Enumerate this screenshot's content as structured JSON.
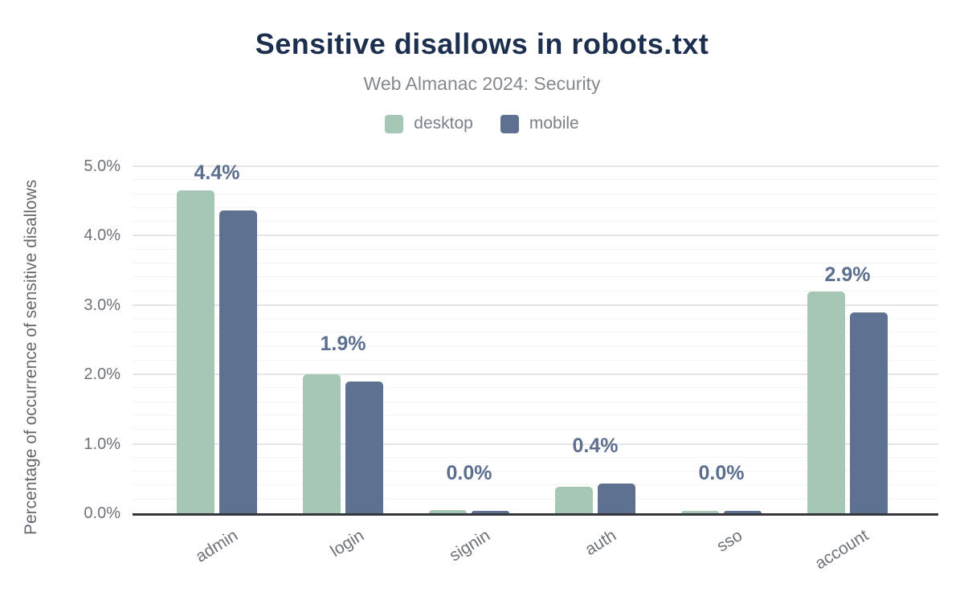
{
  "header": {
    "title": "Sensitive disallows in robots.txt",
    "subtitle": "Web Almanac 2024: Security"
  },
  "chart_data": {
    "type": "bar",
    "title": "Sensitive disallows in robots.txt",
    "subtitle": "Web Almanac 2024: Security",
    "categories": [
      "admin",
      "login",
      "signin",
      "auth",
      "sso",
      "account"
    ],
    "series": [
      {
        "name": "desktop",
        "color": "#a6c7b6",
        "values": [
          4.65,
          2.0,
          0.05,
          0.38,
          0.04,
          3.2
        ]
      },
      {
        "name": "mobile",
        "color": "#5f7190",
        "values": [
          4.36,
          1.9,
          0.03,
          0.43,
          0.03,
          2.89
        ]
      }
    ],
    "data_labels": [
      "4.4%",
      "1.9%",
      "0.0%",
      "0.4%",
      "0.0%",
      "2.9%"
    ],
    "data_label_series": "mobile",
    "xlabel": "",
    "ylabel": "Percentage of occurrence of sensitive disallows",
    "ylim": [
      0,
      5
    ],
    "yticks": [
      "0.0%",
      "1.0%",
      "2.0%",
      "3.0%",
      "4.0%",
      "5.0%"
    ],
    "ytick_step": 1.0,
    "minor_grid_step": 0.2,
    "grid": "on",
    "legend_position": "top"
  },
  "colors": {
    "title": "#1d2f4e",
    "subtitle": "#84888f",
    "axis_text": "#6d727a",
    "data_label": "#5c6f8f",
    "grid_major": "#e4e5e7",
    "grid_minor": "#f3f3f4",
    "axis_line": "#34383d",
    "desktop_bar": "#a6c7b6",
    "mobile_bar": "#5f7190",
    "background": "#ffffff"
  }
}
